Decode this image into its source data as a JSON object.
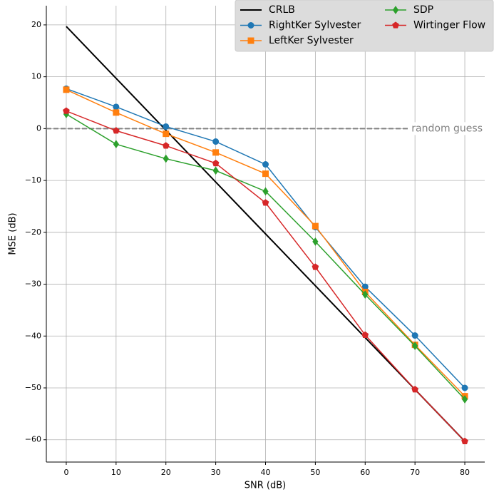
{
  "chart_data": {
    "type": "line",
    "xlabel": "SNR (dB)",
    "ylabel": "MSE (dB)",
    "x": [
      0,
      10,
      20,
      30,
      40,
      50,
      60,
      70,
      80
    ],
    "xlim": [
      -4,
      84
    ],
    "ylim": [
      -64.3,
      23.7
    ],
    "xticks": [
      0,
      10,
      20,
      30,
      40,
      50,
      60,
      70,
      80
    ],
    "yticks": [
      {
        "value": -60,
        "label": "−60"
      },
      {
        "value": -50,
        "label": "−50"
      },
      {
        "value": -40,
        "label": "−40"
      },
      {
        "value": -30,
        "label": "−30"
      },
      {
        "value": -20,
        "label": "−20"
      },
      {
        "value": -10,
        "label": "−10"
      },
      0,
      10,
      20
    ],
    "grid": true,
    "legend": "upper right",
    "hline": {
      "y": 0,
      "label": "random guess",
      "color": "#808080"
    },
    "series": [
      {
        "name": "CRLB",
        "color": "#000000",
        "marker": "none",
        "values": [
          19.7,
          9.7,
          -0.3,
          -10.3,
          -20.3,
          -30.3,
          -40.3,
          -50.3,
          -60.3
        ]
      },
      {
        "name": "RightKer Sylvester",
        "color": "#1f77b4",
        "marker": "circle",
        "values": [
          7.7,
          4.2,
          0.4,
          -2.5,
          -6.9,
          -19,
          -30.5,
          -39.9,
          -50
        ]
      },
      {
        "name": "LeftKer Sylvester",
        "color": "#ff7f0e",
        "marker": "square",
        "values": [
          7.5,
          3.1,
          -1,
          -4.6,
          -8.7,
          -18.8,
          -31.5,
          -41.7,
          -51.6
        ]
      },
      {
        "name": "SDP",
        "color": "#2ca02c",
        "marker": "diamond",
        "values": [
          2.8,
          -3,
          -5.8,
          -8.1,
          -12.1,
          -21.8,
          -32,
          -41.9,
          -52.2
        ]
      },
      {
        "name": "Wirtinger Flow",
        "color": "#d62728",
        "marker": "pentagon",
        "values": [
          3.4,
          -0.4,
          -3.3,
          -6.7,
          -14.3,
          -26.7,
          -39.8,
          -50.3,
          -60.3
        ]
      }
    ]
  }
}
